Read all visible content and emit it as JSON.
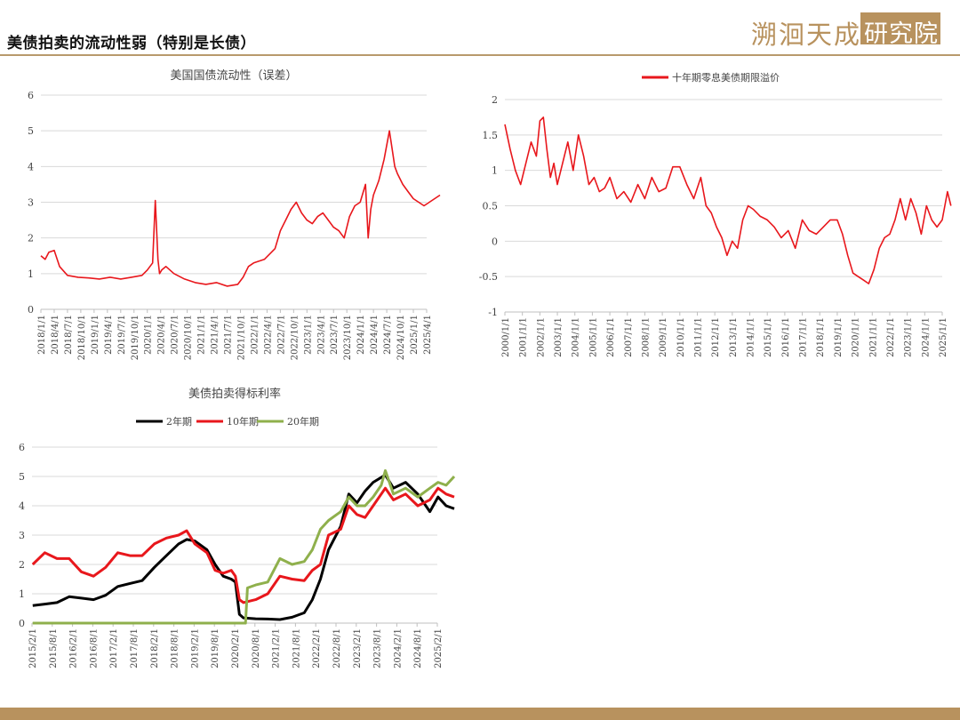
{
  "header": {
    "title": "美债拍卖的流动性弱（特别是长债）"
  },
  "logo": {
    "text_left": "溯洄天成",
    "text_box": "研究院",
    "color": "#b8925e"
  },
  "colors": {
    "red": "#e8171c",
    "black": "#000000",
    "green": "#8fb04c",
    "accent": "#b89a6c"
  },
  "chart_data": [
    {
      "type": "line",
      "title": "美国国债流动性（误差）",
      "xlabel": "",
      "ylabel": "",
      "ylim": [
        0,
        6
      ],
      "yticks": [
        "0",
        "1",
        "2",
        "3",
        "4",
        "5",
        "6"
      ],
      "xticks": [
        "2018/1/1",
        "2018/4/1",
        "2018/7/1",
        "2018/10/1",
        "2019/1/1",
        "2019/4/1",
        "2019/7/1",
        "2019/10/1",
        "2020/1/1",
        "2020/4/1",
        "2020/7/1",
        "2020/10/1",
        "2021/1/1",
        "2021/4/1",
        "2021/7/1",
        "2021/10/1",
        "2022/1/1",
        "2022/4/1",
        "2022/7/1",
        "2022/10/1",
        "2023/1/1",
        "2023/4/1",
        "2023/7/1",
        "2023/10/1",
        "2024/1/1",
        "2024/4/1",
        "2024/7/1",
        "2024/10/1",
        "2025/1/1",
        "2025/4/1"
      ],
      "legend": false,
      "series": [
        {
          "color": "#e8171c",
          "x": [
            2018.0,
            2018.08,
            2018.15,
            2018.25,
            2018.35,
            2018.5,
            2018.7,
            2018.9,
            2019.1,
            2019.3,
            2019.5,
            2019.7,
            2019.9,
            2020.0,
            2020.1,
            2020.15,
            2020.2,
            2020.23,
            2020.27,
            2020.35,
            2020.5,
            2020.7,
            2020.9,
            2021.1,
            2021.3,
            2021.5,
            2021.7,
            2021.8,
            2021.9,
            2022.0,
            2022.2,
            2022.4,
            2022.5,
            2022.6,
            2022.7,
            2022.8,
            2022.9,
            2023.0,
            2023.1,
            2023.2,
            2023.3,
            2023.4,
            2023.5,
            2023.6,
            2023.7,
            2023.8,
            2023.9,
            2024.0,
            2024.1,
            2024.15,
            2024.2,
            2024.25,
            2024.35,
            2024.45,
            2024.5,
            2024.55,
            2024.6,
            2024.65,
            2024.7,
            2024.8,
            2024.9,
            2025.0,
            2025.1,
            2025.2,
            2025.3,
            2025.4,
            2025.5
          ],
          "y": [
            1.5,
            1.4,
            1.6,
            1.65,
            1.2,
            0.95,
            0.9,
            0.88,
            0.85,
            0.9,
            0.85,
            0.9,
            0.95,
            1.1,
            1.3,
            3.05,
            1.4,
            1.0,
            1.1,
            1.2,
            1.0,
            0.85,
            0.75,
            0.7,
            0.75,
            0.65,
            0.7,
            0.9,
            1.2,
            1.3,
            1.4,
            1.7,
            2.2,
            2.5,
            2.8,
            3.0,
            2.7,
            2.5,
            2.4,
            2.6,
            2.7,
            2.5,
            2.3,
            2.2,
            2.0,
            2.6,
            2.9,
            3.0,
            3.5,
            2.0,
            2.8,
            3.2,
            3.6,
            4.2,
            4.6,
            5.0,
            4.5,
            4.0,
            3.8,
            3.5,
            3.3,
            3.1,
            3.0,
            2.9,
            3.0,
            3.1,
            3.2
          ]
        }
      ]
    },
    {
      "type": "line",
      "title": "",
      "xlabel": "",
      "ylabel": "",
      "ylim": [
        -1,
        2
      ],
      "yticks": [
        "-1",
        "-0.5",
        "0",
        "0.5",
        "1",
        "1.5",
        "2"
      ],
      "xticks": [
        "2000/1/1",
        "2001/1/1",
        "2002/1/1",
        "2003/1/1",
        "2004/1/1",
        "2005/1/1",
        "2006/1/1",
        "2007/1/1",
        "2008/1/1",
        "2009/1/1",
        "2010/1/1",
        "2011/1/1",
        "2012/1/1",
        "2013/1/1",
        "2014/1/1",
        "2015/1/1",
        "2016/1/1",
        "2017/1/1",
        "2018/1/1",
        "2019/1/1",
        "2020/1/1",
        "2021/1/1",
        "2022/1/1",
        "2023/1/1",
        "2024/1/1",
        "2025/1/1"
      ],
      "legend": "top",
      "series": [
        {
          "name": "十年期零息美债期限溢价",
          "color": "#e8171c",
          "x": [
            2000.0,
            2000.3,
            2000.6,
            2000.9,
            2001.2,
            2001.5,
            2001.8,
            2002.0,
            2002.2,
            2002.4,
            2002.6,
            2002.8,
            2003.0,
            2003.3,
            2003.6,
            2003.9,
            2004.2,
            2004.5,
            2004.8,
            2005.1,
            2005.4,
            2005.7,
            2006.0,
            2006.4,
            2006.8,
            2007.2,
            2007.6,
            2008.0,
            2008.4,
            2008.8,
            2009.2,
            2009.6,
            2010.0,
            2010.4,
            2010.8,
            2011.2,
            2011.5,
            2011.8,
            2012.1,
            2012.4,
            2012.7,
            2013.0,
            2013.3,
            2013.6,
            2013.9,
            2014.2,
            2014.6,
            2015.0,
            2015.4,
            2015.8,
            2016.2,
            2016.6,
            2017.0,
            2017.4,
            2017.8,
            2018.2,
            2018.6,
            2019.0,
            2019.3,
            2019.6,
            2019.9,
            2020.2,
            2020.5,
            2020.8,
            2021.1,
            2021.4,
            2021.7,
            2022.0,
            2022.3,
            2022.6,
            2022.9,
            2023.2,
            2023.5,
            2023.8,
            2024.1,
            2024.4,
            2024.7,
            2025.0,
            2025.3,
            2025.5
          ],
          "y": [
            1.65,
            1.3,
            1.0,
            0.8,
            1.1,
            1.4,
            1.2,
            1.7,
            1.75,
            1.3,
            0.9,
            1.1,
            0.8,
            1.1,
            1.4,
            1.0,
            1.5,
            1.2,
            0.8,
            0.9,
            0.7,
            0.75,
            0.9,
            0.6,
            0.7,
            0.55,
            0.8,
            0.6,
            0.9,
            0.7,
            0.75,
            1.05,
            1.05,
            0.8,
            0.6,
            0.9,
            0.5,
            0.4,
            0.2,
            0.05,
            -0.2,
            0.0,
            -0.1,
            0.3,
            0.5,
            0.45,
            0.35,
            0.3,
            0.2,
            0.05,
            0.15,
            -0.1,
            0.3,
            0.15,
            0.1,
            0.2,
            0.3,
            0.3,
            0.1,
            -0.2,
            -0.45,
            -0.5,
            -0.55,
            -0.6,
            -0.4,
            -0.1,
            0.05,
            0.1,
            0.3,
            0.6,
            0.3,
            0.6,
            0.4,
            0.1,
            0.5,
            0.3,
            0.2,
            0.3,
            0.7,
            0.5
          ]
        }
      ]
    },
    {
      "type": "line",
      "title": "美债拍卖得标利率",
      "xlabel": "",
      "ylabel": "",
      "ylim": [
        0,
        6
      ],
      "yticks": [
        "0",
        "1",
        "2",
        "3",
        "4",
        "5",
        "6"
      ],
      "xticks": [
        "2015/2/1",
        "2015/8/1",
        "2016/2/1",
        "2016/8/1",
        "2017/2/1",
        "2017/8/1",
        "2018/2/1",
        "2018/8/1",
        "2019/2/1",
        "2019/8/1",
        "2020/2/1",
        "2020/8/1",
        "2021/2/1",
        "2021/8/1",
        "2022/2/1",
        "2022/8/1",
        "2023/2/1",
        "2023/8/1",
        "2024/2/1",
        "2024/8/1",
        "2025/2/1"
      ],
      "legend": "top",
      "series": [
        {
          "name": "2年期",
          "color": "#000000",
          "x": [
            2015.1,
            2015.4,
            2015.7,
            2016.0,
            2016.3,
            2016.6,
            2016.9,
            2017.2,
            2017.5,
            2017.8,
            2018.1,
            2018.4,
            2018.7,
            2018.9,
            2019.1,
            2019.4,
            2019.6,
            2019.8,
            2020.0,
            2020.1,
            2020.2,
            2020.3,
            2020.6,
            2020.9,
            2021.2,
            2021.5,
            2021.8,
            2022.0,
            2022.2,
            2022.4,
            2022.7,
            2022.9,
            2023.1,
            2023.3,
            2023.5,
            2023.8,
            2024.0,
            2024.3,
            2024.6,
            2024.9,
            2025.1,
            2025.3,
            2025.5
          ],
          "y": [
            0.6,
            0.65,
            0.7,
            0.9,
            0.85,
            0.8,
            0.95,
            1.25,
            1.35,
            1.45,
            1.9,
            2.3,
            2.7,
            2.85,
            2.8,
            2.5,
            2.0,
            1.6,
            1.5,
            1.4,
            0.3,
            0.18,
            0.15,
            0.14,
            0.12,
            0.2,
            0.35,
            0.8,
            1.5,
            2.5,
            3.3,
            4.4,
            4.1,
            4.5,
            4.8,
            5.05,
            4.6,
            4.8,
            4.4,
            3.8,
            4.3,
            4.0,
            3.9
          ]
        },
        {
          "name": "10年期",
          "color": "#e8171c",
          "x": [
            2015.1,
            2015.4,
            2015.7,
            2016.0,
            2016.3,
            2016.6,
            2016.9,
            2017.2,
            2017.5,
            2017.8,
            2018.1,
            2018.4,
            2018.7,
            2018.9,
            2019.1,
            2019.4,
            2019.6,
            2019.8,
            2020.0,
            2020.1,
            2020.2,
            2020.3,
            2020.6,
            2020.9,
            2021.2,
            2021.5,
            2021.8,
            2022.0,
            2022.2,
            2022.4,
            2022.7,
            2022.9,
            2023.1,
            2023.3,
            2023.5,
            2023.8,
            2024.0,
            2024.3,
            2024.6,
            2024.9,
            2025.1,
            2025.3,
            2025.5
          ],
          "y": [
            2.0,
            2.4,
            2.2,
            2.2,
            1.75,
            1.6,
            1.9,
            2.4,
            2.3,
            2.3,
            2.7,
            2.9,
            3.0,
            3.15,
            2.7,
            2.4,
            1.8,
            1.7,
            1.8,
            1.6,
            0.8,
            0.7,
            0.8,
            1.0,
            1.6,
            1.5,
            1.45,
            1.8,
            2.0,
            3.0,
            3.2,
            4.0,
            3.7,
            3.6,
            4.0,
            4.6,
            4.2,
            4.4,
            4.0,
            4.2,
            4.6,
            4.4,
            4.3
          ]
        },
        {
          "name": "20年期",
          "color": "#8fb04c",
          "x": [
            2015.1,
            2016.0,
            2017.0,
            2018.0,
            2019.0,
            2020.0,
            2020.35,
            2020.4,
            2020.6,
            2020.9,
            2021.2,
            2021.5,
            2021.8,
            2022.0,
            2022.2,
            2022.4,
            2022.7,
            2022.9,
            2023.1,
            2023.3,
            2023.5,
            2023.7,
            2023.8,
            2024.0,
            2024.3,
            2024.6,
            2024.9,
            2025.1,
            2025.3,
            2025.5
          ],
          "y": [
            0,
            0,
            0,
            0,
            0,
            0,
            0,
            1.2,
            1.3,
            1.4,
            2.2,
            2.0,
            2.1,
            2.5,
            3.2,
            3.5,
            3.8,
            4.3,
            4.0,
            4.0,
            4.3,
            4.7,
            5.2,
            4.4,
            4.6,
            4.3,
            4.6,
            4.8,
            4.7,
            5.0
          ]
        }
      ]
    }
  ]
}
